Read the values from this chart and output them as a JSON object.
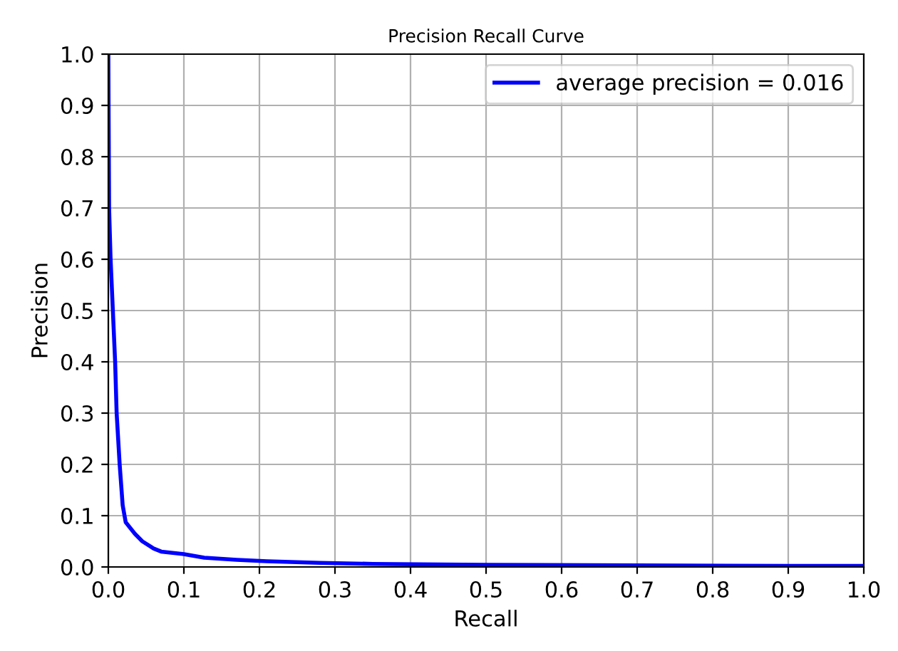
{
  "chart_data": {
    "type": "line",
    "title": "Precision Recall Curve",
    "xlabel": "Recall",
    "ylabel": "Precision",
    "series": [
      {
        "name": "average precision = 0.016",
        "color": "#0000ff",
        "x": [
          0.0,
          0.001,
          0.003,
          0.006,
          0.009,
          0.011,
          0.015,
          0.019,
          0.023,
          0.035,
          0.045,
          0.06,
          0.07,
          0.1,
          0.127,
          0.17,
          0.21,
          0.28,
          0.35,
          0.5,
          0.7,
          0.9,
          1.0
        ],
        "values": [
          1.0,
          0.7,
          0.6,
          0.5,
          0.4,
          0.3,
          0.2,
          0.12,
          0.087,
          0.065,
          0.05,
          0.036,
          0.03,
          0.025,
          0.018,
          0.014,
          0.011,
          0.008,
          0.006,
          0.004,
          0.003,
          0.002,
          0.002
        ]
      }
    ],
    "xlim": [
      0,
      1
    ],
    "ylim": [
      0,
      1
    ],
    "xticks": [
      {
        "value": 0,
        "label": "0.0"
      },
      0.1,
      0.2,
      0.3,
      0.4,
      0.5,
      0.6,
      0.7,
      0.8,
      0.9,
      {
        "value": 1,
        "label": "1.0"
      }
    ],
    "yticks": [
      {
        "value": 0,
        "label": "0.0"
      },
      0.1,
      0.2,
      0.3,
      0.4,
      0.5,
      0.6,
      0.7,
      0.8,
      0.9,
      {
        "value": 1,
        "label": "1.0"
      }
    ],
    "grid": true,
    "legend": "top right"
  }
}
